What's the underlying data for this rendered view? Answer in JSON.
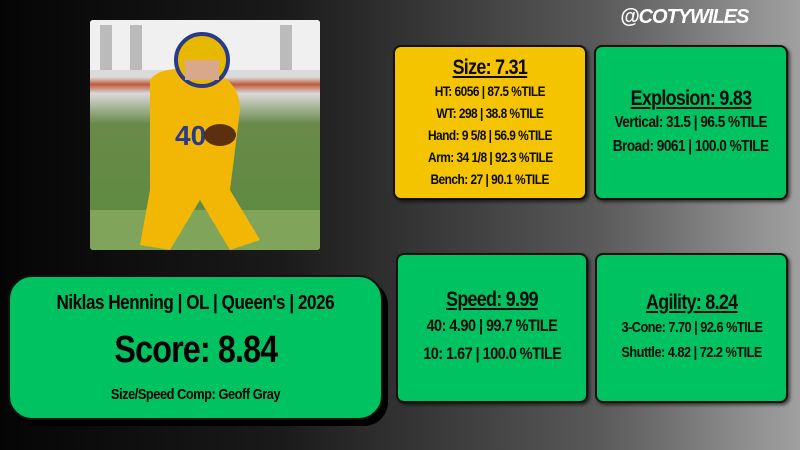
{
  "handle": "@COTYWILES",
  "player": {
    "line": "Niklas Henning | OL | Queen's | 2026",
    "score": "Score: 8.84",
    "comp": "Size/Speed Comp: Geoff Gray"
  },
  "size": {
    "title": "Size: 7.31",
    "lines": [
      "HT: 6056 | 87.5 %TILE",
      "WT: 298 | 38.8 %TILE",
      "Hand: 9 5/8 | 56.9 %TILE",
      "Arm: 34 1/8 | 92.3 %TILE",
      "Bench: 27 | 90.1 %TILE"
    ]
  },
  "explosion": {
    "title": "Explosion: 9.83",
    "lines": [
      "Vertical: 31.5 | 96.5 %TILE",
      "Broad: 9061 | 100.0 %TILE"
    ]
  },
  "speed": {
    "title": "Speed: 9.99",
    "lines": [
      "40: 4.90 | 99.7 %TILE",
      "10: 1.67 | 100.0 %TILE"
    ]
  },
  "agility": {
    "title": "Agility: 8.24",
    "lines": [
      "3-Cone: 7.70 | 92.6 %TILE",
      "Shuttle: 4.82 | 72.2 %TILE"
    ]
  },
  "colors": {
    "green": "#00c261",
    "yellow": "#f5c400"
  }
}
